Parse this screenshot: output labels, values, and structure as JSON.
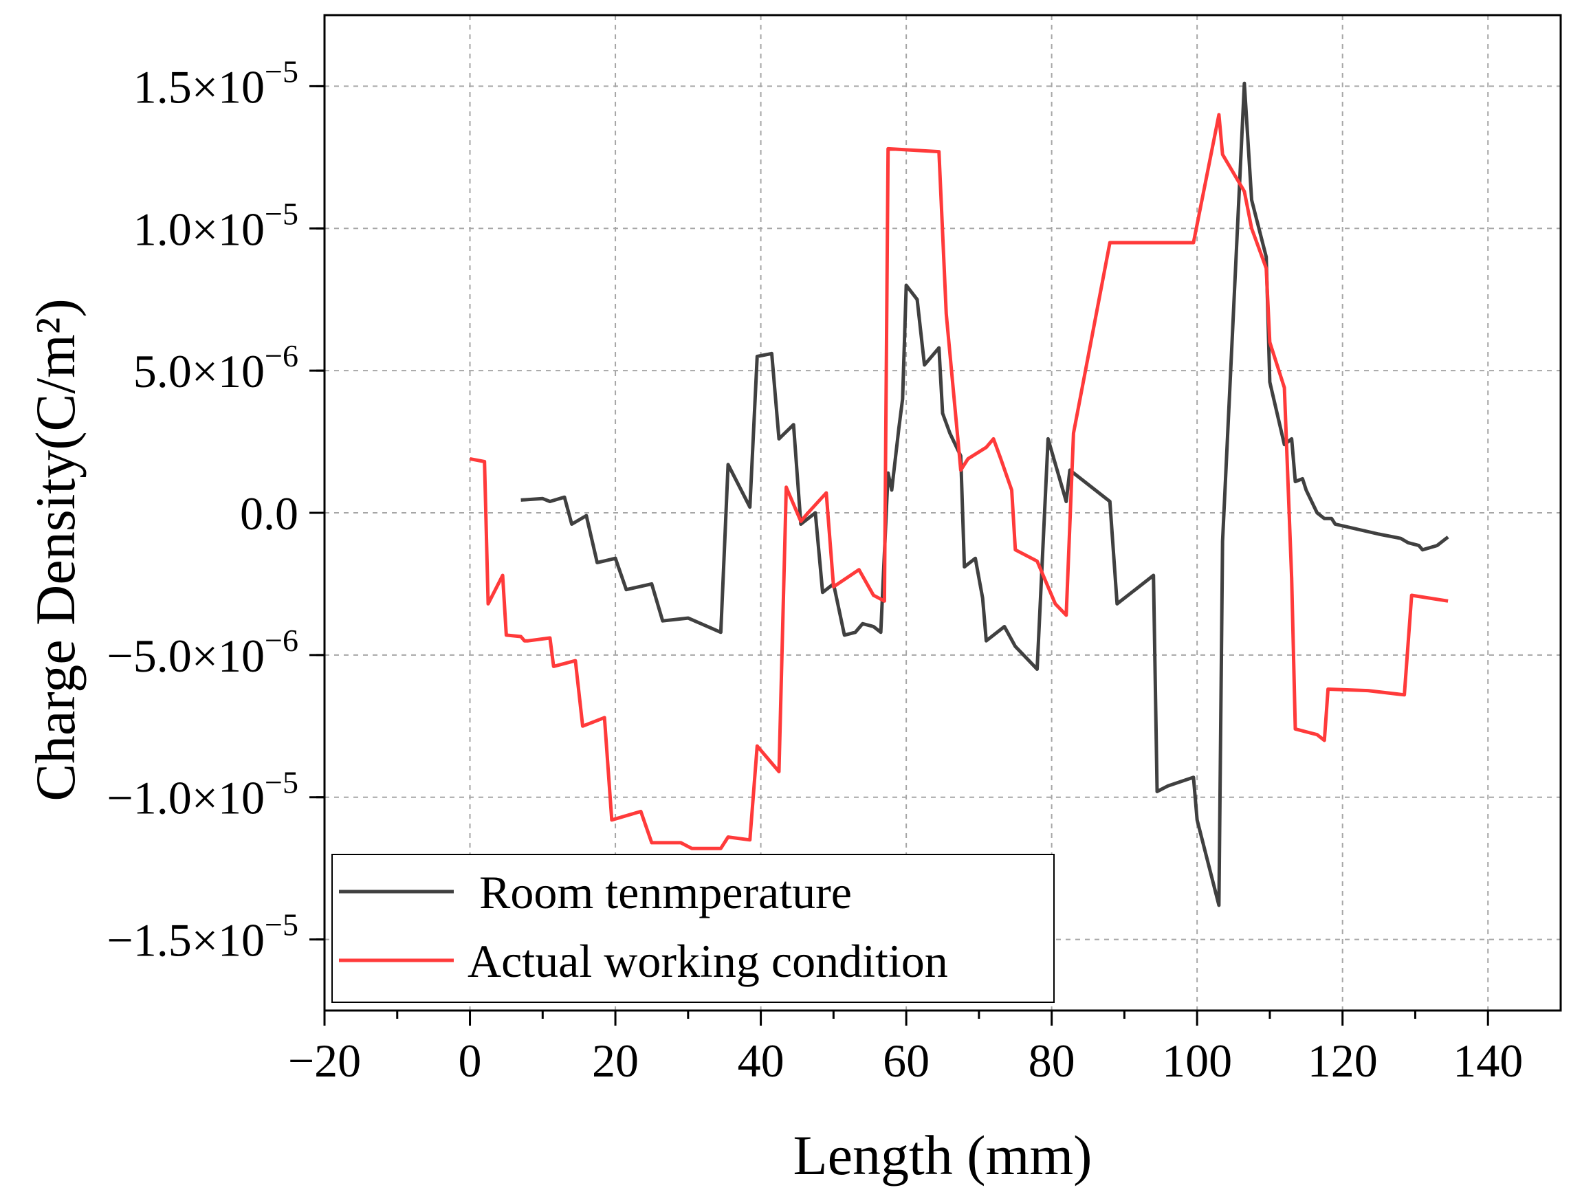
{
  "chart_data": {
    "type": "line",
    "xlabel": "Length (mm)",
    "ylabel": "Charge Density(C/m²)",
    "xlim": [
      -20,
      150
    ],
    "ylim": [
      -1.75e-05,
      1.75e-05
    ],
    "x_ticks": [
      -20,
      0,
      20,
      40,
      60,
      80,
      100,
      120,
      140
    ],
    "x_tick_labels": [
      "−20",
      "0",
      "20",
      "40",
      "60",
      "80",
      "100",
      "120",
      "140"
    ],
    "y_ticks": [
      -1.5e-05,
      -1e-05,
      -5e-06,
      0,
      5e-06,
      1e-05,
      1.5e-05
    ],
    "y_tick_labels": [
      {
        "mantissa": "−1.5×10",
        "exp": "−5"
      },
      {
        "mantissa": "−1.0×10",
        "exp": "−5"
      },
      {
        "mantissa": "−5.0×10",
        "exp": "−6"
      },
      {
        "mantissa": "0.0",
        "exp": ""
      },
      {
        "mantissa": "5.0×10",
        "exp": "−6"
      },
      {
        "mantissa": "1.0×10",
        "exp": "−5"
      },
      {
        "mantissa": "1.5×10",
        "exp": "−5"
      }
    ],
    "grid": true,
    "legend_position": "bottom-left",
    "series": [
      {
        "name": "Room tenmperature",
        "color": "#404040",
        "points": [
          [
            7,
            4.5e-07
          ],
          [
            10,
            5e-07
          ],
          [
            11,
            4e-07
          ],
          [
            13,
            5.5e-07
          ],
          [
            14,
            -4e-07
          ],
          [
            16,
            -1e-07
          ],
          [
            17.5,
            -1.75e-06
          ],
          [
            20,
            -1.6e-06
          ],
          [
            21.5,
            -2.7e-06
          ],
          [
            25,
            -2.5e-06
          ],
          [
            26.5,
            -3.8e-06
          ],
          [
            30,
            -3.7e-06
          ],
          [
            34.5,
            -4.2e-06
          ],
          [
            35.5,
            1.7e-06
          ],
          [
            38.5,
            2e-07
          ],
          [
            39.5,
            5.5e-06
          ],
          [
            41.5,
            5.6e-06
          ],
          [
            42.5,
            2.6e-06
          ],
          [
            44.5,
            3.1e-06
          ],
          [
            45.5,
            -4e-07
          ],
          [
            47.5,
            0.0
          ],
          [
            48.5,
            -2.8e-06
          ],
          [
            50,
            -2.5e-06
          ],
          [
            51.5,
            -4.3e-06
          ],
          [
            53,
            -4.2e-06
          ],
          [
            54,
            -3.9e-06
          ],
          [
            55.5,
            -4e-06
          ],
          [
            56.5,
            -4.2e-06
          ],
          [
            57.5,
            1.4e-06
          ],
          [
            58,
            8e-07
          ],
          [
            59,
            3e-06
          ],
          [
            59.5,
            4e-06
          ],
          [
            60,
            8e-06
          ],
          [
            61.5,
            7.5e-06
          ],
          [
            62.5,
            5.2e-06
          ],
          [
            64.5,
            5.8e-06
          ],
          [
            65,
            3.5e-06
          ],
          [
            66,
            2.8e-06
          ],
          [
            67.5,
            2e-06
          ],
          [
            68,
            -1.9e-06
          ],
          [
            69.5,
            -1.6e-06
          ],
          [
            70.5,
            -3e-06
          ],
          [
            71,
            -4.5e-06
          ],
          [
            73.5,
            -4e-06
          ],
          [
            75,
            -4.7e-06
          ],
          [
            78,
            -5.5e-06
          ],
          [
            79.5,
            2.6e-06
          ],
          [
            82,
            4e-07
          ],
          [
            82.5,
            1.5e-06
          ],
          [
            88,
            4e-07
          ],
          [
            89,
            -3.2e-06
          ],
          [
            94,
            -2.2e-06
          ],
          [
            94.5,
            -9.8e-06
          ],
          [
            96,
            -9.6e-06
          ],
          [
            99.5,
            -9.3e-06
          ],
          [
            100,
            -1.08e-05
          ],
          [
            103,
            -1.38e-05
          ],
          [
            103.5,
            -1e-06
          ],
          [
            106.5,
            1.51e-05
          ],
          [
            107.5,
            1.1e-05
          ],
          [
            109.5,
            9e-06
          ],
          [
            110,
            4.6e-06
          ],
          [
            112,
            2.4e-06
          ],
          [
            113,
            2.6e-06
          ],
          [
            113.5,
            1.1e-06
          ],
          [
            114.5,
            1.2e-06
          ],
          [
            115,
            8e-07
          ],
          [
            116.5,
            0.0
          ],
          [
            117.5,
            -2e-07
          ],
          [
            118.5,
            -2e-07
          ],
          [
            119,
            -4e-07
          ],
          [
            125,
            -7.5e-07
          ],
          [
            128,
            -9e-07
          ],
          [
            129,
            -1.05e-06
          ],
          [
            130.5,
            -1.15e-06
          ],
          [
            131,
            -1.3e-06
          ],
          [
            133,
            -1.15e-06
          ],
          [
            134.5,
            -8.5e-07
          ]
        ]
      },
      {
        "name": "Actual working condition",
        "color": "#ff3a3a",
        "points": [
          [
            0,
            1.9e-06
          ],
          [
            2,
            1.8e-06
          ],
          [
            2.5,
            -3.2e-06
          ],
          [
            4.5,
            -2.2e-06
          ],
          [
            5,
            -4.3e-06
          ],
          [
            7,
            -4.35e-06
          ],
          [
            7.5,
            -4.5e-06
          ],
          [
            8,
            -4.5e-06
          ],
          [
            11,
            -4.4e-06
          ],
          [
            11.5,
            -5.4e-06
          ],
          [
            14.5,
            -5.2e-06
          ],
          [
            15.5,
            -7.5e-06
          ],
          [
            18.5,
            -7.2e-06
          ],
          [
            19.5,
            -1.08e-05
          ],
          [
            23.5,
            -1.05e-05
          ],
          [
            25,
            -1.16e-05
          ],
          [
            29,
            -1.16e-05
          ],
          [
            30.5,
            -1.18e-05
          ],
          [
            34.5,
            -1.18e-05
          ],
          [
            35.5,
            -1.14e-05
          ],
          [
            38.5,
            -1.15e-05
          ],
          [
            39.5,
            -8.2e-06
          ],
          [
            42.5,
            -9.1e-06
          ],
          [
            43.5,
            9e-07
          ],
          [
            45.5,
            -3e-07
          ],
          [
            46.5,
            0.0
          ],
          [
            49,
            7e-07
          ],
          [
            50,
            -2.6e-06
          ],
          [
            53.5,
            -2e-06
          ],
          [
            55.5,
            -2.9e-06
          ],
          [
            57,
            -3.1e-06
          ],
          [
            57.5,
            1.28e-05
          ],
          [
            64.5,
            1.27e-05
          ],
          [
            65.5,
            7e-06
          ],
          [
            67.5,
            1.5e-06
          ],
          [
            68.5,
            1.9e-06
          ],
          [
            71,
            2.3e-06
          ],
          [
            72,
            2.6e-06
          ],
          [
            73,
            1.9e-06
          ],
          [
            74.5,
            8e-07
          ],
          [
            75,
            -1.3e-06
          ],
          [
            78,
            -1.7e-06
          ],
          [
            80.5,
            -3.2e-06
          ],
          [
            82,
            -3.6e-06
          ],
          [
            83,
            2.8e-06
          ],
          [
            88,
            9.5e-06
          ],
          [
            99.5,
            9.5e-06
          ],
          [
            103,
            1.4e-05
          ],
          [
            103.5,
            1.26e-05
          ],
          [
            106.5,
            1.13e-05
          ],
          [
            107.5,
            1e-05
          ],
          [
            109.5,
            8.6e-06
          ],
          [
            110,
            6e-06
          ],
          [
            112,
            4.4e-06
          ],
          [
            113,
            -2.3e-06
          ],
          [
            113.5,
            -7.6e-06
          ],
          [
            116.5,
            -7.8e-06
          ],
          [
            117.5,
            -8e-06
          ],
          [
            118,
            -6.2e-06
          ],
          [
            123.5,
            -6.25e-06
          ],
          [
            128.5,
            -6.4e-06
          ],
          [
            129.5,
            -2.9e-06
          ],
          [
            134.5,
            -3.1e-06
          ]
        ]
      }
    ]
  }
}
